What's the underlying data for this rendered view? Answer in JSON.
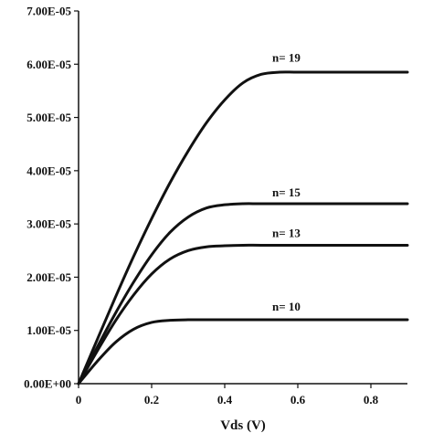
{
  "chart_data": {
    "type": "line",
    "title": "",
    "xlabel": "Vds (V)",
    "ylabel": "",
    "xlim": [
      0,
      0.9
    ],
    "ylim": [
      0,
      7e-05
    ],
    "x_ticks": [
      0,
      0.2,
      0.4,
      0.6,
      0.8
    ],
    "x_tick_labels": [
      "0",
      "0.2",
      "0.4",
      "0.6",
      "0.8"
    ],
    "y_ticks": [
      0,
      1e-05,
      2e-05,
      3e-05,
      4e-05,
      5e-05,
      6e-05,
      7e-05
    ],
    "y_tick_labels": [
      "0.00E+00",
      "1.00E-05",
      "2.00E-05",
      "3.00E-05",
      "4.00E-05",
      "5.00E-05",
      "6.00E-05",
      "7.00E-05"
    ],
    "grid": false,
    "legend": "none",
    "colors": {
      "line": "#111111",
      "axis": "#111111"
    },
    "series": [
      {
        "name": "n= 19",
        "label_at": [
          0.53,
          6.05e-05
        ],
        "x": [
          0,
          0.05,
          0.1,
          0.15,
          0.2,
          0.25,
          0.3,
          0.35,
          0.4,
          0.45,
          0.5,
          0.55,
          0.6,
          0.7,
          0.8,
          0.9
        ],
        "y": [
          0,
          8.1e-06,
          1.61e-05,
          2.38e-05,
          3.1e-05,
          3.77e-05,
          4.37e-05,
          4.9e-05,
          5.33e-05,
          5.65e-05,
          5.81e-05,
          5.85e-05,
          5.85e-05,
          5.85e-05,
          5.85e-05,
          5.85e-05
        ]
      },
      {
        "name": "n= 15",
        "label_at": [
          0.53,
          3.52e-05
        ],
        "x": [
          0,
          0.05,
          0.1,
          0.15,
          0.2,
          0.25,
          0.3,
          0.35,
          0.4,
          0.45,
          0.5,
          0.6,
          0.7,
          0.8,
          0.9
        ],
        "y": [
          0,
          6.7e-06,
          1.31e-05,
          1.9e-05,
          2.42e-05,
          2.84e-05,
          3.13e-05,
          3.3e-05,
          3.36e-05,
          3.38e-05,
          3.38e-05,
          3.38e-05,
          3.38e-05,
          3.38e-05,
          3.38e-05
        ]
      },
      {
        "name": "n= 13",
        "label_at": [
          0.53,
          2.75e-05
        ],
        "x": [
          0,
          0.05,
          0.1,
          0.15,
          0.2,
          0.25,
          0.3,
          0.35,
          0.4,
          0.45,
          0.5,
          0.6,
          0.7,
          0.8,
          0.9
        ],
        "y": [
          0,
          6e-06,
          1.17e-05,
          1.66e-05,
          2.06e-05,
          2.34e-05,
          2.5e-05,
          2.57e-05,
          2.59e-05,
          2.6e-05,
          2.6e-05,
          2.6e-05,
          2.6e-05,
          2.6e-05,
          2.6e-05
        ]
      },
      {
        "name": "n= 10",
        "label_at": [
          0.53,
          1.37e-05
        ],
        "x": [
          0,
          0.05,
          0.1,
          0.15,
          0.2,
          0.25,
          0.3,
          0.35,
          0.4,
          0.5,
          0.6,
          0.7,
          0.8,
          0.9
        ],
        "y": [
          0,
          4.1e-06,
          7.7e-06,
          1.02e-05,
          1.15e-05,
          1.19e-05,
          1.2e-05,
          1.2e-05,
          1.2e-05,
          1.2e-05,
          1.2e-05,
          1.2e-05,
          1.2e-05,
          1.2e-05
        ]
      }
    ]
  }
}
